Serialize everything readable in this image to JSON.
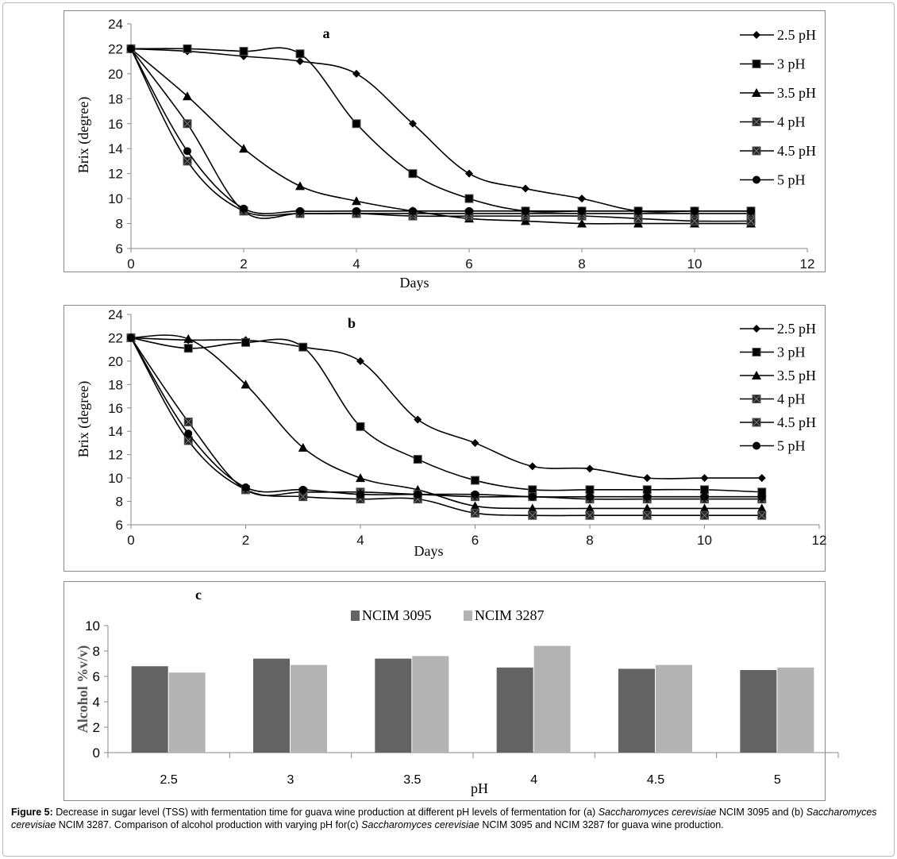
{
  "chart_data": [
    {
      "type": "line",
      "title": "a",
      "xlabel": "Days",
      "ylabel": "Brix (degree)",
      "xlim": [
        0,
        12
      ],
      "ylim": [
        6,
        24
      ],
      "xticks": [
        0,
        2,
        4,
        6,
        8,
        10,
        12
      ],
      "yticks": [
        6,
        8,
        10,
        12,
        14,
        16,
        18,
        20,
        22,
        24
      ],
      "legend_position": "right",
      "x": [
        0,
        1,
        2,
        3,
        4,
        5,
        6,
        7,
        8,
        9,
        10,
        11
      ],
      "series": [
        {
          "name": "2.5 pH",
          "marker": "diamond",
          "values": [
            22,
            21.8,
            21.4,
            21,
            20,
            16,
            12,
            10.8,
            10,
            9,
            9,
            9
          ]
        },
        {
          "name": "3 pH",
          "marker": "square",
          "values": [
            22,
            22,
            21.8,
            21.6,
            16,
            12,
            10,
            9,
            9,
            9,
            9,
            9
          ]
        },
        {
          "name": "3.5 pH",
          "marker": "triangle",
          "values": [
            22,
            18.2,
            14,
            11,
            9.8,
            9,
            8.4,
            8.2,
            8,
            8,
            8,
            8
          ]
        },
        {
          "name": "4 pH",
          "marker": "square-x",
          "values": [
            22,
            16,
            9,
            8.8,
            8.8,
            8.6,
            8.6,
            8.6,
            8.6,
            8.4,
            8.2,
            8.2
          ]
        },
        {
          "name": "4.5 pH",
          "marker": "star-square",
          "values": [
            22,
            13,
            9,
            8.8,
            8.8,
            8.8,
            8.8,
            8.8,
            8.8,
            8.8,
            8.8,
            8.8
          ]
        },
        {
          "name": "5 pH",
          "marker": "circle",
          "values": [
            22,
            13.8,
            9.2,
            9,
            9,
            9,
            9,
            9,
            9,
            9,
            9,
            9
          ]
        }
      ]
    },
    {
      "type": "line",
      "title": "b",
      "xlabel": "Days",
      "ylabel": "Brix (degree)",
      "xlim": [
        0,
        12
      ],
      "ylim": [
        6,
        24
      ],
      "xticks": [
        0,
        2,
        4,
        6,
        8,
        10,
        12
      ],
      "yticks": [
        6,
        8,
        10,
        12,
        14,
        16,
        18,
        20,
        22,
        24
      ],
      "legend_position": "right",
      "x": [
        0,
        1,
        2,
        3,
        4,
        5,
        6,
        7,
        8,
        9,
        10,
        11
      ],
      "series": [
        {
          "name": "2.5 pH",
          "marker": "diamond",
          "values": [
            22,
            21.8,
            21.8,
            21.2,
            20,
            15,
            13,
            11,
            10.8,
            10,
            10,
            10
          ]
        },
        {
          "name": "3 pH",
          "marker": "square",
          "values": [
            22,
            21.1,
            21.6,
            21.2,
            14.4,
            11.6,
            9.8,
            9,
            9,
            9,
            9,
            8.8
          ]
        },
        {
          "name": "3.5 pH",
          "marker": "triangle",
          "values": [
            22,
            21.9,
            18,
            12.6,
            10,
            9,
            7.6,
            7.4,
            7.4,
            7.4,
            7.4,
            7.4
          ]
        },
        {
          "name": "4 pH",
          "marker": "square-x",
          "values": [
            22,
            14.8,
            9,
            8.8,
            8.8,
            8.6,
            8.4,
            8.4,
            8.2,
            8.2,
            8.2,
            8.2
          ]
        },
        {
          "name": "4.5 pH",
          "marker": "star-square",
          "values": [
            22,
            13.2,
            9,
            8.4,
            8.2,
            8.2,
            7,
            6.8,
            6.8,
            6.8,
            6.8,
            6.8
          ]
        },
        {
          "name": "5 pH",
          "marker": "circle",
          "values": [
            22,
            13.8,
            9.2,
            9,
            8.6,
            8.6,
            8.6,
            8.4,
            8.4,
            8.4,
            8.4,
            8.4
          ]
        }
      ]
    },
    {
      "type": "bar",
      "title": "c",
      "xlabel": "pH",
      "ylabel": "Alcohol %v/v)",
      "ylim": [
        0,
        10
      ],
      "yticks": [
        0,
        2,
        4,
        6,
        8,
        10
      ],
      "legend_position": "top-center",
      "categories": [
        "2.5",
        "3",
        "3.5",
        "4",
        "4.5",
        "5"
      ],
      "series": [
        {
          "name": "NCIM 3095",
          "color": "#636363",
          "values": [
            6.8,
            7.4,
            7.4,
            6.7,
            6.6,
            6.5
          ]
        },
        {
          "name": "NCIM 3287",
          "color": "#b3b3b3",
          "values": [
            6.3,
            6.9,
            7.6,
            8.4,
            6.9,
            6.7
          ]
        }
      ]
    }
  ],
  "caption": {
    "label": "Figure 5:",
    "parts": [
      " Decrease in sugar level (TSS) with fermentation time for guava wine production at different pH levels of fermentation for (a) ",
      "Saccharomyces cerevisiae",
      " NCIM 3095 and (b) ",
      "Saccharomyces cerevisiae",
      " NCIM 3287. Comparison of alcohol production with varying pH for(c) ",
      "Saccharomyces cerevisiae",
      " NCIM 3095 and NCIM 3287 for guava wine production."
    ]
  }
}
